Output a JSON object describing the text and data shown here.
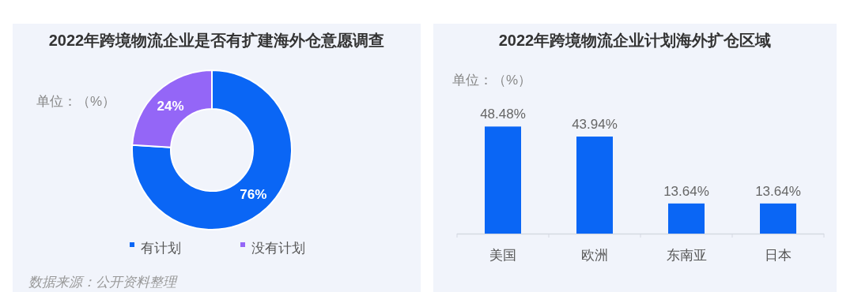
{
  "chart_data": [
    {
      "type": "donut",
      "title": "2022年跨境物流企业是否有扩建海外仓意愿调查",
      "categories": [
        "有计划",
        "没有计划"
      ],
      "values": [
        76,
        24
      ],
      "colors": [
        "#0a66f5",
        "#9466f7"
      ],
      "value_labels": [
        "76%",
        "24%"
      ],
      "legend": "bottom",
      "annotations": [
        "单位：（%）",
        "数据来源：公开资料整理"
      ]
    },
    {
      "type": "bar",
      "title": "2022年跨境物流企业计划海外扩仓区域",
      "categories": [
        "美国",
        "欧洲",
        "东南亚",
        "日本"
      ],
      "values": [
        48.48,
        43.94,
        13.64,
        13.64
      ],
      "color": "#0a66f5",
      "value_labels": [
        "48.48%",
        "43.94%",
        "13.64%",
        "13.64%"
      ],
      "annotations": [
        "单位：（%）"
      ]
    }
  ]
}
